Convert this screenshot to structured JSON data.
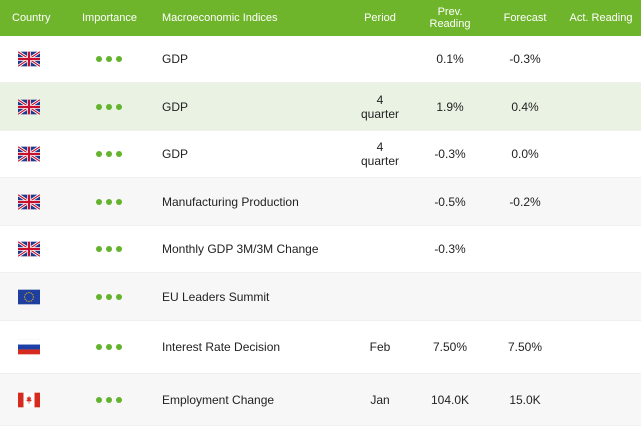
{
  "header": {
    "country": "Country",
    "importance": "Importance",
    "indices": "Macroeconomic Indices",
    "period": "Period",
    "prev": "Prev. Reading",
    "forecast": "Forecast",
    "actual": "Act. Reading"
  },
  "colors": {
    "header_bg": "#6fb52c",
    "dot": "#64b32c",
    "highlight_row": "#eaf3e3",
    "alt_row": "#f7f7f7"
  },
  "rows": [
    {
      "flag": "uk-flag-icon",
      "importance": 3,
      "name": "GDP",
      "period": "",
      "prev": "0.1%",
      "forecast": "-0.3%",
      "actual": ""
    },
    {
      "flag": "uk-flag-icon",
      "importance": 3,
      "name": "GDP",
      "period": "4 quarter",
      "prev": "1.9%",
      "forecast": "0.4%",
      "actual": ""
    },
    {
      "flag": "uk-flag-icon",
      "importance": 3,
      "name": "GDP",
      "period": "4 quarter",
      "prev": "-0.3%",
      "forecast": "0.0%",
      "actual": ""
    },
    {
      "flag": "uk-flag-icon",
      "importance": 3,
      "name": "Manufacturing Production",
      "period": "",
      "prev": "-0.5%",
      "forecast": "-0.2%",
      "actual": ""
    },
    {
      "flag": "uk-flag-icon",
      "importance": 3,
      "name": "Monthly GDP 3M/3M Change",
      "period": "",
      "prev": "-0.3%",
      "forecast": "",
      "actual": ""
    },
    {
      "flag": "eu-flag-icon",
      "importance": 3,
      "name": "EU Leaders Summit",
      "period": "",
      "prev": "",
      "forecast": "",
      "actual": ""
    },
    {
      "flag": "russia-flag-icon",
      "importance": 3,
      "name": "Interest Rate Decision",
      "period": "Feb",
      "prev": "7.50%",
      "forecast": "7.50%",
      "actual": ""
    },
    {
      "flag": "canada-flag-icon",
      "importance": 3,
      "name": "Employment Change",
      "period": "Jan",
      "prev": "104.0K",
      "forecast": "15.0K",
      "actual": ""
    }
  ]
}
